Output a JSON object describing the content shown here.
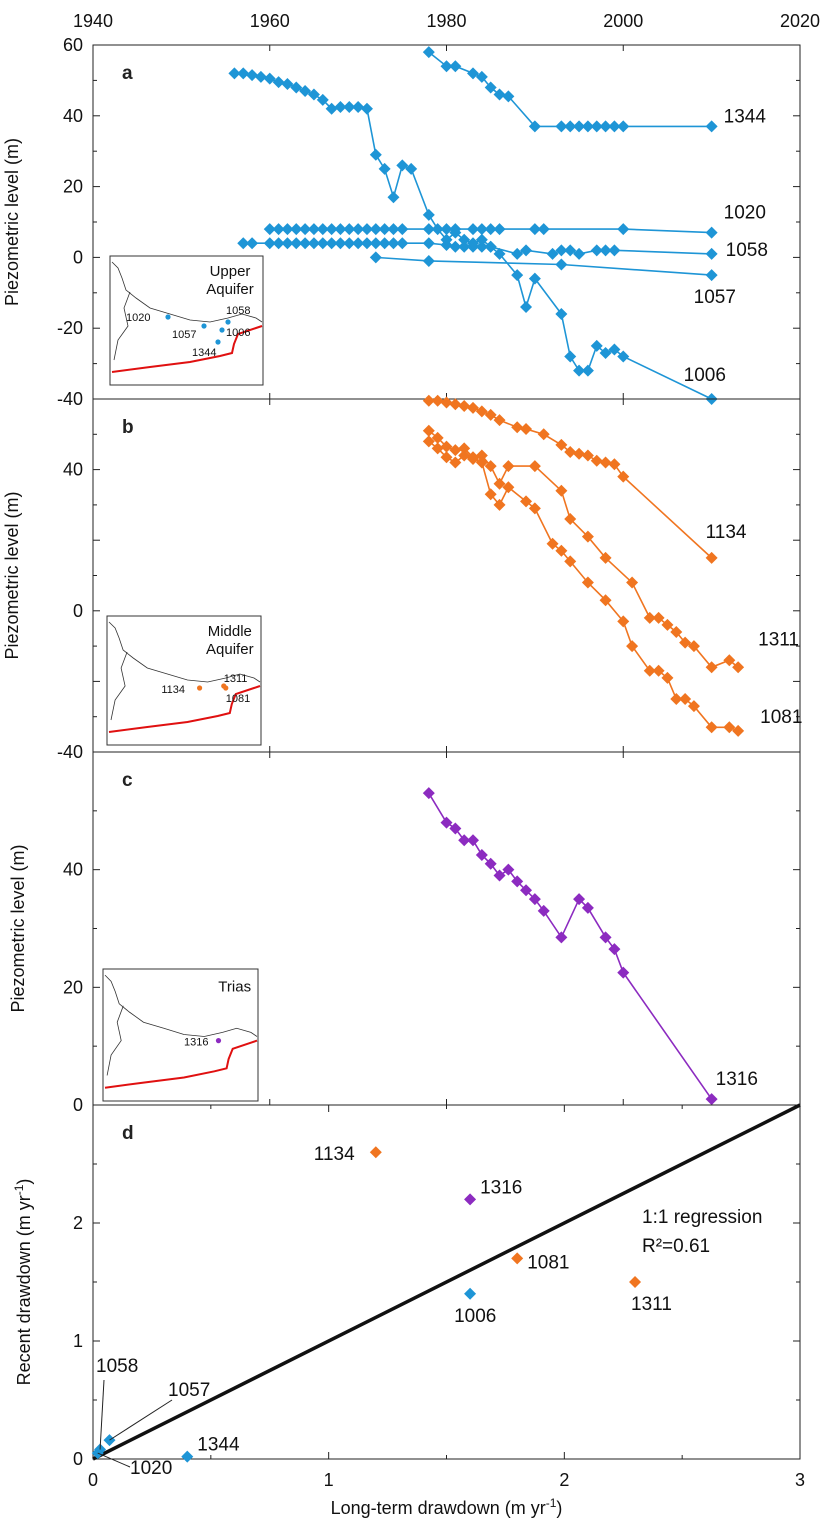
{
  "top_axis": {
    "ticks": [
      "1940",
      "1960",
      "1980",
      "2000",
      "2020"
    ],
    "range": [
      1940,
      2020
    ]
  },
  "colors": {
    "upper": "#1e95d6",
    "middle": "#f07520",
    "trias": "#8c2bc0",
    "map_boundary": "#e01010",
    "map_coast": "#333333",
    "line": "#111111"
  },
  "chart_data": [
    {
      "type": "line",
      "panel_label": "a",
      "ylabel": "Piezometric level (m)",
      "xlim": [
        1940,
        2020
      ],
      "ylim": [
        -40,
        60
      ],
      "yticks": [
        60,
        40,
        20,
        0,
        -20,
        -40
      ],
      "ytick_labels": [
        "60",
        "40",
        "20",
        "0",
        "-20",
        "-40"
      ],
      "inset": {
        "title": "Upper Aquifer",
        "points": [
          "1020",
          "1058",
          "1057",
          "1006",
          "1344"
        ]
      },
      "series": [
        {
          "name": "1344",
          "x": [
            1978,
            1980,
            1981,
            1983,
            1984,
            1985,
            1986,
            1987,
            1990,
            1993,
            1994,
            1995,
            1996,
            1997,
            1998,
            1999,
            2000,
            2010
          ],
          "y": [
            58,
            54,
            54,
            52,
            51,
            48,
            46,
            45.5,
            37,
            37,
            37,
            37,
            37,
            37,
            37,
            37,
            37,
            37
          ]
        },
        {
          "name": "1020",
          "x": [
            1960,
            1961,
            1962,
            1963,
            1964,
            1965,
            1966,
            1967,
            1968,
            1969,
            1970,
            1971,
            1972,
            1973,
            1974,
            1975,
            1978,
            1980,
            1981,
            1983,
            1984,
            1985,
            1986,
            1990,
            1991,
            2000,
            2010
          ],
          "y": [
            8,
            8,
            8,
            8,
            8,
            8,
            8,
            8,
            8,
            8,
            8,
            8,
            8,
            8,
            8,
            8,
            8,
            8,
            8,
            8,
            8,
            8,
            8,
            8,
            8,
            8,
            7
          ]
        },
        {
          "name": "1058",
          "x": [
            1957,
            1958,
            1960,
            1961,
            1962,
            1963,
            1964,
            1965,
            1966,
            1967,
            1968,
            1969,
            1970,
            1971,
            1972,
            1973,
            1974,
            1975,
            1978,
            1980,
            1981,
            1982,
            1983,
            1984,
            1985,
            1988,
            1989,
            1992,
            1993,
            1994,
            1995,
            1997,
            1998,
            1999,
            2010
          ],
          "y": [
            4,
            4,
            4,
            4,
            4,
            4,
            4,
            4,
            4,
            4,
            4,
            4,
            4,
            4,
            4,
            4,
            4,
            4,
            4,
            3.5,
            3,
            3,
            3,
            3,
            3,
            1,
            2,
            1,
            2,
            2,
            1,
            2,
            2,
            2,
            1
          ]
        },
        {
          "name": "1057",
          "x": [
            1972,
            1978,
            1993,
            2010
          ],
          "y": [
            0,
            -1,
            -2,
            -5
          ]
        },
        {
          "name": "1006",
          "x": [
            1956,
            1957,
            1958,
            1959,
            1960,
            1961,
            1962,
            1963,
            1964,
            1965,
            1966,
            1967,
            1968,
            1969,
            1970,
            1971,
            1972,
            1973,
            1974,
            1975,
            1976,
            1978,
            1979,
            1980,
            1981,
            1982,
            1983,
            1984,
            1985,
            1986,
            1988,
            1989,
            1990,
            1993,
            1994,
            1995,
            1996,
            1997,
            1998,
            1999,
            2000,
            2010
          ],
          "y": [
            52,
            52,
            51.5,
            51,
            50.5,
            49.5,
            49,
            48,
            47,
            46,
            44.5,
            42,
            42.5,
            42.5,
            42.5,
            42,
            29,
            25,
            17,
            26,
            25,
            12,
            8,
            5,
            7,
            5,
            4,
            5,
            3,
            1,
            -5,
            -14,
            -6,
            -16,
            -28,
            -32,
            -32,
            -25,
            -27,
            -26,
            -28,
            -40
          ]
        }
      ],
      "point_labels": [
        "1344",
        "1020",
        "1058",
        "1057",
        "1006"
      ]
    },
    {
      "type": "line",
      "panel_label": "b",
      "ylabel": "Piezometric level (m)",
      "xlim": [
        1940,
        2020
      ],
      "ylim": [
        -40,
        60
      ],
      "yticks": [
        40,
        0,
        -40
      ],
      "ytick_labels": [
        "40",
        "0",
        "-40"
      ],
      "inset": {
        "title": "Middle Aquifer",
        "points": [
          "1134",
          "1311",
          "1081"
        ]
      },
      "series": [
        {
          "name": "1134",
          "x": [
            1978,
            1979,
            1980,
            1981,
            1982,
            1983,
            1984,
            1985,
            1986,
            1988,
            1989,
            1991,
            1993,
            1994,
            1995,
            1996,
            1997,
            1998,
            1999,
            2000,
            2010
          ],
          "y": [
            59.5,
            59.5,
            59,
            58.5,
            58,
            57.5,
            56.5,
            55.5,
            54,
            52,
            51.5,
            50,
            47,
            45,
            44.5,
            44,
            42.5,
            42,
            41.5,
            38,
            15
          ]
        },
        {
          "name": "1311",
          "x": [
            1978,
            1979,
            1980,
            1981,
            1982,
            1983,
            1984,
            1985,
            1986,
            1987,
            1990,
            1993,
            1994,
            1996,
            1998,
            2001,
            2003,
            2004,
            2005,
            2006,
            2007,
            2008,
            2010,
            2012,
            2013
          ],
          "y": [
            51,
            49,
            46.5,
            45.5,
            46,
            43.5,
            44,
            41,
            36,
            41,
            41,
            34,
            26,
            21,
            15,
            8,
            -2,
            -2,
            -4,
            -6,
            -9,
            -10,
            -16,
            -14,
            -16
          ]
        },
        {
          "name": "1081",
          "x": [
            1978,
            1979,
            1980,
            1981,
            1982,
            1983,
            1984,
            1985,
            1986,
            1987,
            1989,
            1990,
            1992,
            1993,
            1994,
            1996,
            1998,
            2000,
            2001,
            2003,
            2004,
            2005,
            2006,
            2007,
            2008,
            2010,
            2012,
            2013
          ],
          "y": [
            48,
            46,
            43.5,
            42,
            44,
            43,
            42,
            33,
            30,
            35,
            31,
            29,
            19,
            17,
            14,
            8,
            3,
            -3,
            -10,
            -17,
            -17,
            -19,
            -25,
            -25,
            -27,
            -33,
            -33,
            -34
          ]
        }
      ],
      "point_labels": [
        "1134",
        "1311",
        "1081"
      ]
    },
    {
      "type": "line",
      "panel_label": "c",
      "ylabel": "Piezometric level (m)",
      "xlim": [
        1940,
        2020
      ],
      "ylim": [
        0,
        60
      ],
      "yticks": [
        40,
        20,
        0
      ],
      "ytick_labels": [
        "40",
        "20",
        "0"
      ],
      "inset": {
        "title": "Trias",
        "points": [
          "1316"
        ]
      },
      "series": [
        {
          "name": "1316",
          "x": [
            1978,
            1980,
            1981,
            1982,
            1983,
            1984,
            1985,
            1986,
            1987,
            1988,
            1989,
            1990,
            1991,
            1993,
            1995,
            1996,
            1998,
            1999,
            2000,
            2010
          ],
          "y": [
            53,
            48,
            47,
            45,
            45,
            42.5,
            41,
            39,
            40,
            38,
            36.5,
            35,
            33,
            28.5,
            35,
            33.5,
            28.5,
            26.5,
            22.5,
            1
          ]
        }
      ],
      "point_labels": [
        "1316"
      ]
    },
    {
      "type": "scatter",
      "panel_label": "d",
      "xlabel": "Long-term drawdown (m yr-1)",
      "ylabel": "Recent drawdown (m yr-1)",
      "xlim": [
        0,
        3
      ],
      "ylim": [
        0,
        3
      ],
      "xticks": [
        0,
        1,
        2,
        3
      ],
      "xtick_labels": [
        "0",
        "1",
        "2",
        "3"
      ],
      "yticks": [
        0,
        1,
        2
      ],
      "ytick_labels": [
        "0",
        "1",
        "2"
      ],
      "points": [
        {
          "label": "1134",
          "x": 1.2,
          "y": 2.6,
          "aquifer": "middle"
        },
        {
          "label": "1316",
          "x": 1.6,
          "y": 2.2,
          "aquifer": "trias"
        },
        {
          "label": "1081",
          "x": 1.8,
          "y": 1.7,
          "aquifer": "middle"
        },
        {
          "label": "1311",
          "x": 2.3,
          "y": 1.5,
          "aquifer": "middle"
        },
        {
          "label": "1006",
          "x": 1.6,
          "y": 1.4,
          "aquifer": "upper"
        },
        {
          "label": "1058",
          "x": 0.03,
          "y": 0.08,
          "aquifer": "upper"
        },
        {
          "label": "1057",
          "x": 0.07,
          "y": 0.16,
          "aquifer": "upper"
        },
        {
          "label": "1020",
          "x": 0.02,
          "y": 0.05,
          "aquifer": "upper"
        },
        {
          "label": "1344",
          "x": 0.4,
          "y": 0.02,
          "aquifer": "upper"
        }
      ],
      "regression": {
        "label": "1:1 regression",
        "r2_label": "R²=0.61",
        "from": [
          0,
          0
        ],
        "to": [
          3,
          3
        ]
      }
    }
  ]
}
